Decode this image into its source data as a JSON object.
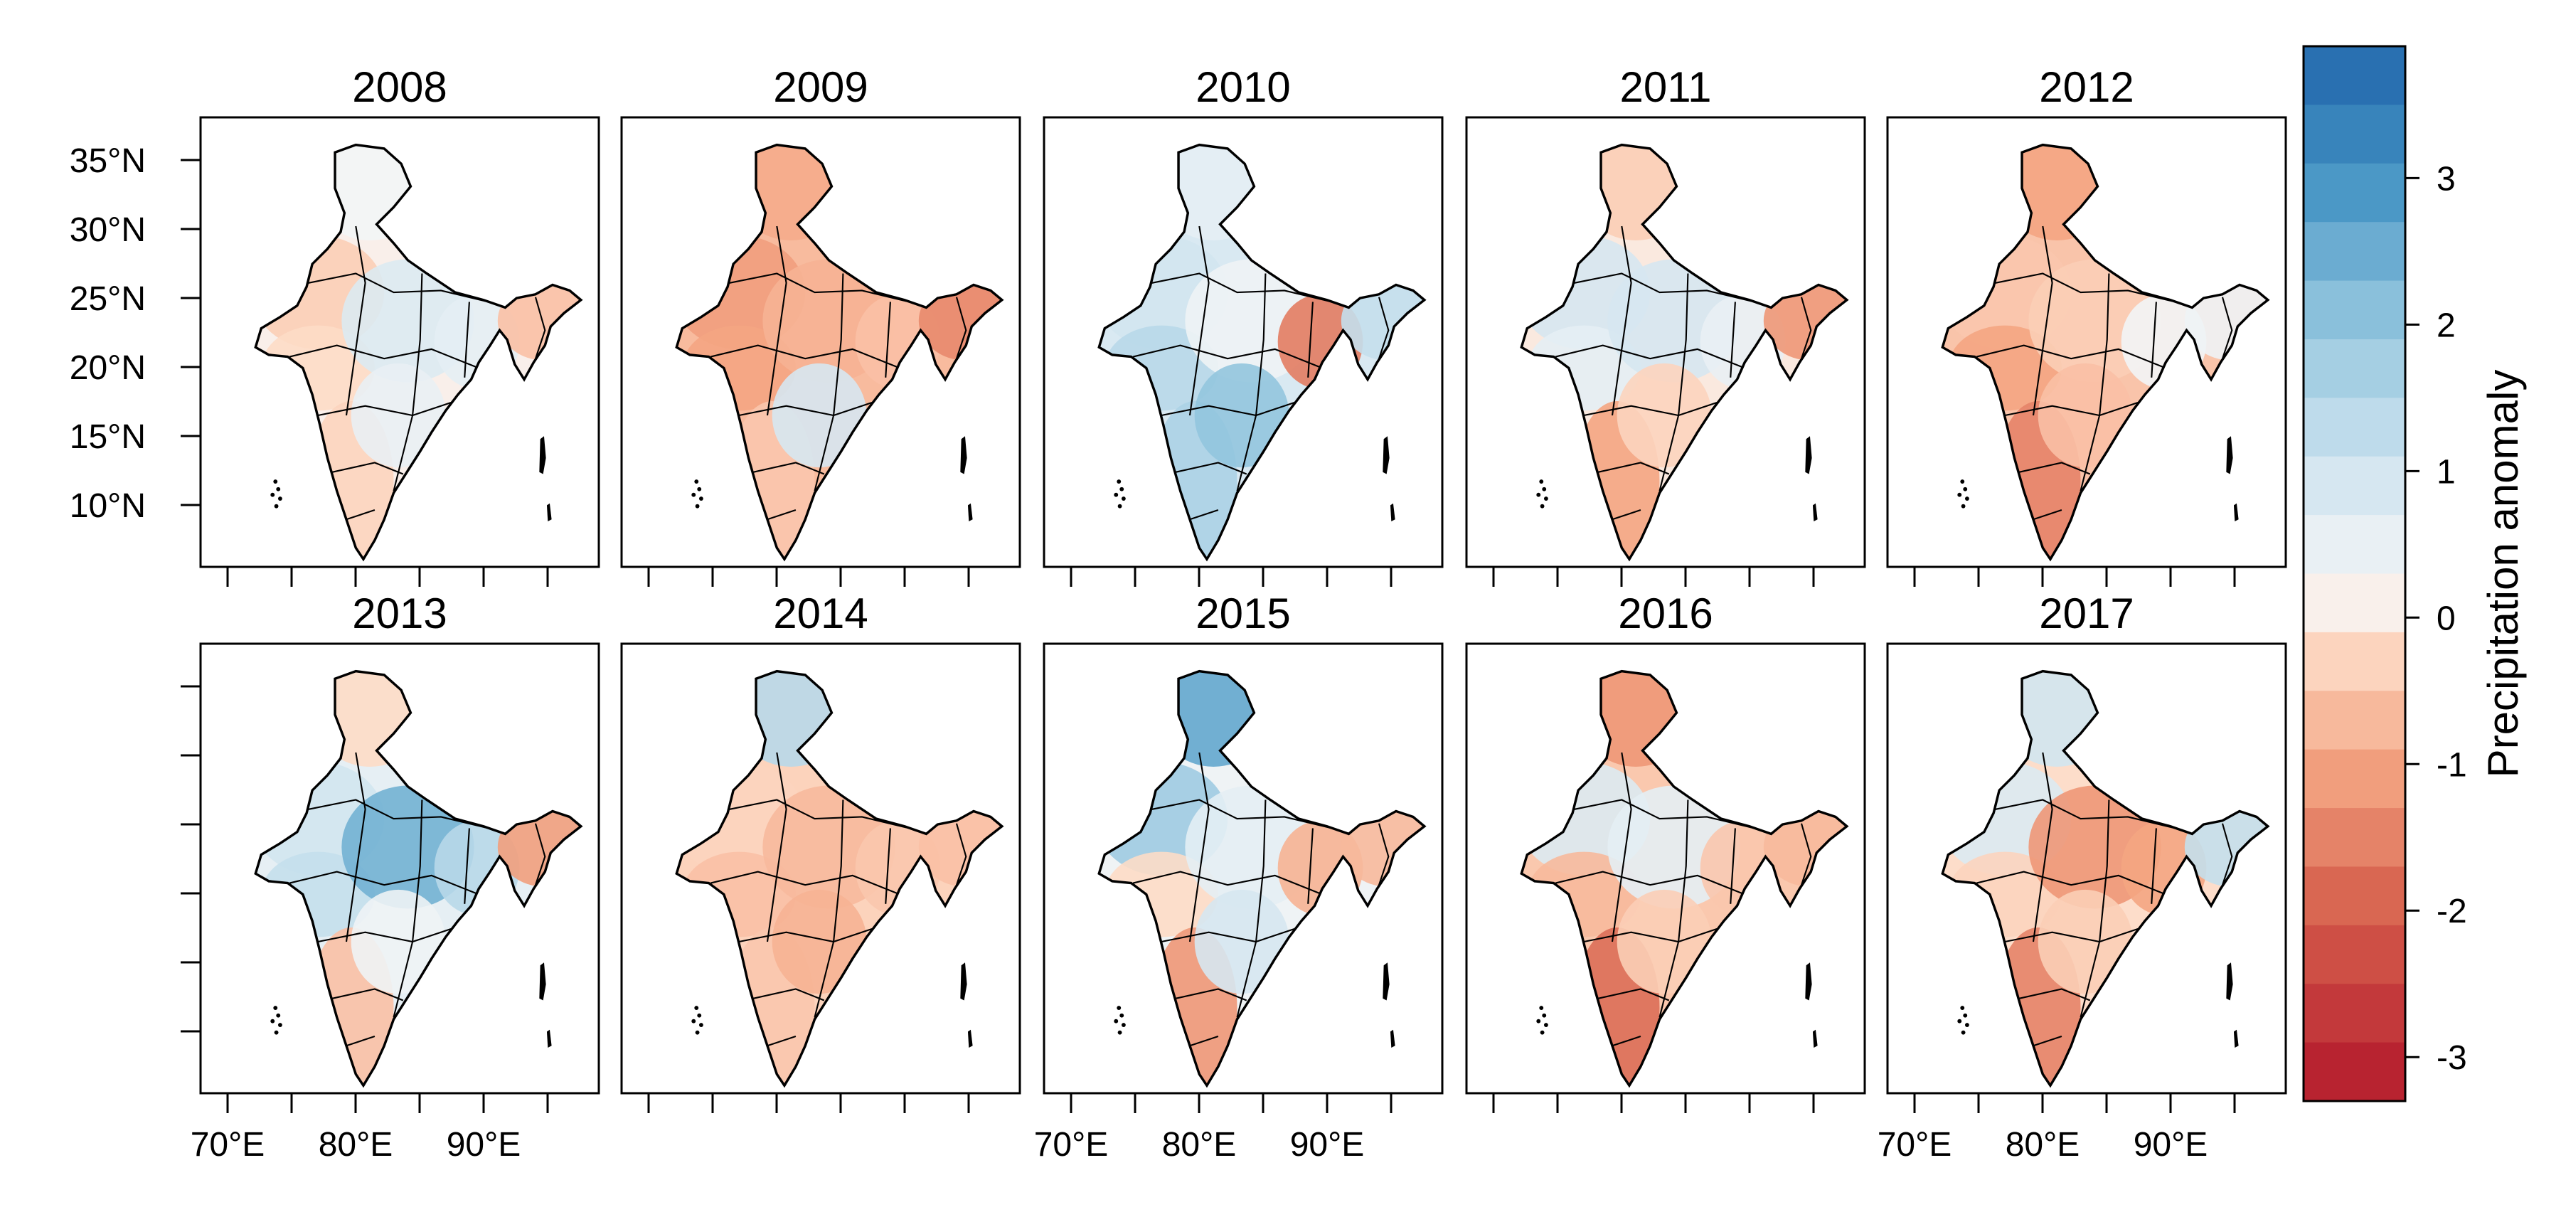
{
  "chart_data": {
    "type": "heatmap",
    "title": "",
    "colorbar": {
      "label": "Precipitation anomaly",
      "ticks": [
        "3",
        "2",
        "1",
        "0",
        "-1",
        "-2",
        "-3"
      ],
      "range": [
        -3.3,
        3.9
      ],
      "colors": [
        "#67001f",
        "#b2182b",
        "#d6604d",
        "#f4a582",
        "#fddbc7",
        "#f7f7f7",
        "#d1e5f0",
        "#92c5de",
        "#4393c3",
        "#2166ac"
      ]
    },
    "x_ticks": [
      "70°E",
      "80°E",
      "90°E"
    ],
    "y_ticks": [
      "35°N",
      "30°N",
      "25°N",
      "20°N",
      "15°N",
      "10°N"
    ],
    "panels": [
      {
        "year": "2008",
        "north": 0.3,
        "northwest": -0.4,
        "west": -0.2,
        "central": 0.8,
        "east": 0.6,
        "northeast": -0.6,
        "south": -0.3,
        "peninsula_east": 0.5
      },
      {
        "year": "2009",
        "north": -0.9,
        "northwest": -1.1,
        "west": -1.0,
        "central": -0.8,
        "east": -0.6,
        "northeast": -1.4,
        "south": -0.5,
        "peninsula_east": 0.9
      },
      {
        "year": "2010",
        "north": 0.6,
        "northwest": 1.0,
        "west": 1.4,
        "central": 0.4,
        "east": -1.6,
        "northeast": 1.2,
        "south": 1.6,
        "peninsula_east": 2.0
      },
      {
        "year": "2011",
        "north": -0.4,
        "northwest": 0.9,
        "west": 0.6,
        "central": 0.9,
        "east": 0.5,
        "northeast": -1.2,
        "south": -1.0,
        "peninsula_east": -0.3
      },
      {
        "year": "2012",
        "north": -1.0,
        "northwest": -0.5,
        "west": -1.0,
        "central": -0.4,
        "east": 0.3,
        "northeast": 0.4,
        "south": -1.5,
        "peninsula_east": -0.6
      },
      {
        "year": "2013",
        "north": -0.2,
        "northwest": 1.0,
        "west": 1.2,
        "central": 2.4,
        "east": 1.4,
        "northeast": -1.1,
        "south": -0.6,
        "peninsula_east": 0.4
      },
      {
        "year": "2014",
        "north": 1.4,
        "northwest": -0.3,
        "west": -0.6,
        "central": -0.7,
        "east": -0.5,
        "northeast": -0.6,
        "south": -0.5,
        "peninsula_east": -0.8
      },
      {
        "year": "2015",
        "north": 2.6,
        "northwest": 1.8,
        "west": -0.2,
        "central": 0.6,
        "east": -0.8,
        "northeast": -0.7,
        "south": -1.2,
        "peninsula_east": 0.9
      },
      {
        "year": "2016",
        "north": -1.2,
        "northwest": 0.8,
        "west": -0.7,
        "central": 0.6,
        "east": -0.5,
        "northeast": -0.7,
        "south": -1.8,
        "peninsula_east": -0.4
      },
      {
        "year": "2017",
        "north": 1.0,
        "northwest": 0.8,
        "west": -0.3,
        "central": -1.2,
        "east": -1.0,
        "northeast": 1.2,
        "south": -1.5,
        "peninsula_east": -0.4
      }
    ]
  }
}
